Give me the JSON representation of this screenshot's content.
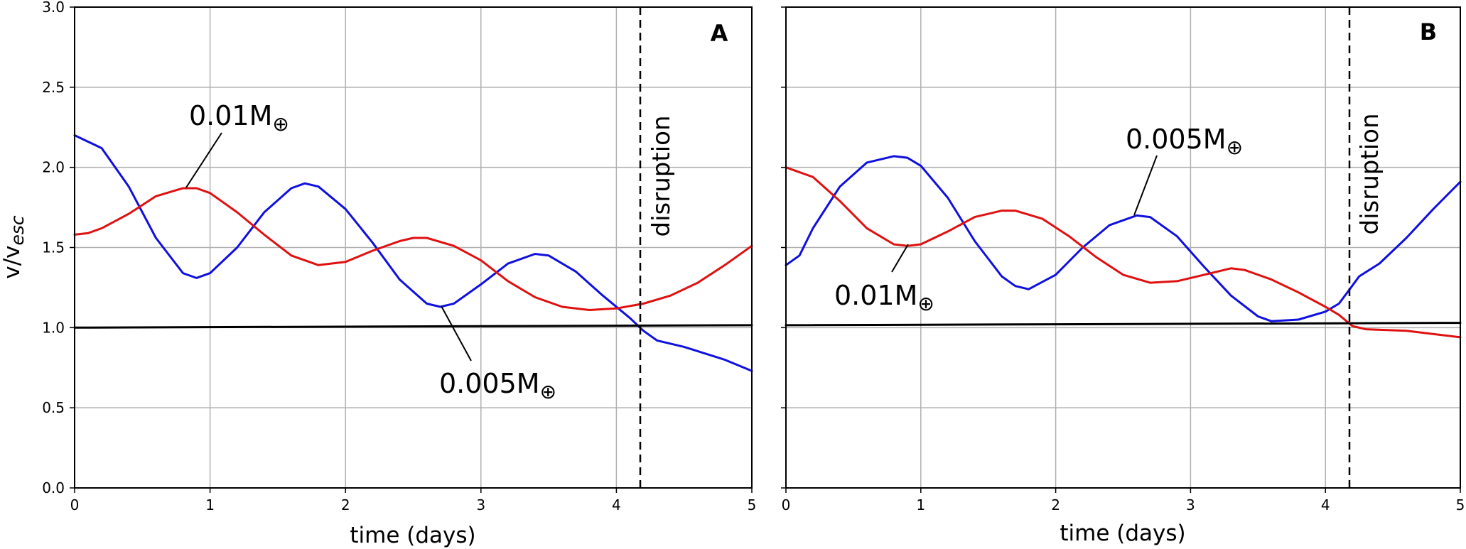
{
  "chart_data": [
    {
      "type": "line",
      "panel_label": "A",
      "xlabel": "time (days)",
      "ylabel": "v/v",
      "ylabel_subscript": "esc",
      "xlim": [
        0,
        5
      ],
      "ylim": [
        0,
        3.0
      ],
      "x_ticks": [
        "0",
        "1",
        "2",
        "3",
        "4",
        "5"
      ],
      "y_ticks": [
        "0.0",
        "0.5",
        "1.0",
        "1.5",
        "2.0",
        "2.5",
        "3.0"
      ],
      "grid": true,
      "series": [
        {
          "color": "#1010e0",
          "points": [
            [
              0,
              2.2
            ],
            [
              0.2,
              2.12
            ],
            [
              0.4,
              1.88
            ],
            [
              0.6,
              1.56
            ],
            [
              0.8,
              1.34
            ],
            [
              0.9,
              1.31
            ],
            [
              1.0,
              1.34
            ],
            [
              1.2,
              1.5
            ],
            [
              1.4,
              1.72
            ],
            [
              1.6,
              1.87
            ],
            [
              1.7,
              1.9
            ],
            [
              1.8,
              1.88
            ],
            [
              2.0,
              1.74
            ],
            [
              2.2,
              1.53
            ],
            [
              2.4,
              1.3
            ],
            [
              2.6,
              1.15
            ],
            [
              2.7,
              1.13
            ],
            [
              2.8,
              1.15
            ],
            [
              3.0,
              1.27
            ],
            [
              3.2,
              1.4
            ],
            [
              3.4,
              1.46
            ],
            [
              3.5,
              1.45
            ],
            [
              3.7,
              1.35
            ],
            [
              3.9,
              1.2
            ],
            [
              4.1,
              1.06
            ],
            [
              4.2,
              0.98
            ],
            [
              4.3,
              0.92
            ],
            [
              4.5,
              0.88
            ],
            [
              4.8,
              0.8
            ],
            [
              5.0,
              0.73
            ]
          ]
        },
        {
          "color": "#e01010",
          "points": [
            [
              0,
              1.58
            ],
            [
              0.1,
              1.59
            ],
            [
              0.2,
              1.62
            ],
            [
              0.4,
              1.71
            ],
            [
              0.6,
              1.82
            ],
            [
              0.8,
              1.87
            ],
            [
              0.9,
              1.87
            ],
            [
              1.0,
              1.84
            ],
            [
              1.2,
              1.72
            ],
            [
              1.4,
              1.58
            ],
            [
              1.6,
              1.45
            ],
            [
              1.8,
              1.39
            ],
            [
              2.0,
              1.41
            ],
            [
              2.2,
              1.48
            ],
            [
              2.4,
              1.54
            ],
            [
              2.5,
              1.56
            ],
            [
              2.6,
              1.56
            ],
            [
              2.8,
              1.51
            ],
            [
              3.0,
              1.42
            ],
            [
              3.2,
              1.29
            ],
            [
              3.4,
              1.19
            ],
            [
              3.6,
              1.13
            ],
            [
              3.8,
              1.11
            ],
            [
              4.0,
              1.12
            ],
            [
              4.2,
              1.15
            ],
            [
              4.4,
              1.2
            ],
            [
              4.6,
              1.28
            ],
            [
              4.8,
              1.39
            ],
            [
              5.0,
              1.51
            ]
          ]
        },
        {
          "color": "#000000",
          "points": [
            [
              0,
              1.0
            ],
            [
              5.0,
              1.015
            ]
          ]
        }
      ],
      "annotations": [
        {
          "main": "0.01M",
          "sub": "⊕",
          "arrow_to": [
            0.85,
            1.87
          ]
        },
        {
          "main": "0.005M",
          "sub": "⊕",
          "arrow_to": [
            2.75,
            1.13
          ]
        }
      ],
      "vline": {
        "x": 4.18,
        "label": "disruption",
        "style": "dashed"
      }
    },
    {
      "type": "line",
      "panel_label": "B",
      "xlabel": "time (days)",
      "xlim": [
        0,
        5
      ],
      "ylim": [
        0,
        3.0
      ],
      "x_ticks": [
        "0",
        "1",
        "2",
        "3",
        "4",
        "5"
      ],
      "grid": true,
      "series": [
        {
          "color": "#1010e0",
          "points": [
            [
              0,
              1.39
            ],
            [
              0.1,
              1.45
            ],
            [
              0.2,
              1.62
            ],
            [
              0.4,
              1.88
            ],
            [
              0.6,
              2.03
            ],
            [
              0.8,
              2.07
            ],
            [
              0.9,
              2.06
            ],
            [
              1.0,
              2.01
            ],
            [
              1.2,
              1.81
            ],
            [
              1.4,
              1.54
            ],
            [
              1.6,
              1.32
            ],
            [
              1.7,
              1.26
            ],
            [
              1.8,
              1.24
            ],
            [
              2.0,
              1.33
            ],
            [
              2.2,
              1.5
            ],
            [
              2.4,
              1.64
            ],
            [
              2.6,
              1.7
            ],
            [
              2.7,
              1.69
            ],
            [
              2.9,
              1.57
            ],
            [
              3.1,
              1.38
            ],
            [
              3.3,
              1.2
            ],
            [
              3.5,
              1.07
            ],
            [
              3.6,
              1.04
            ],
            [
              3.8,
              1.05
            ],
            [
              4.0,
              1.1
            ],
            [
              4.1,
              1.15
            ],
            [
              4.18,
              1.24
            ],
            [
              4.25,
              1.32
            ],
            [
              4.4,
              1.4
            ],
            [
              4.6,
              1.56
            ],
            [
              4.8,
              1.74
            ],
            [
              5.0,
              1.91
            ]
          ]
        },
        {
          "color": "#e01010",
          "points": [
            [
              0,
              2.0
            ],
            [
              0.2,
              1.94
            ],
            [
              0.4,
              1.79
            ],
            [
              0.6,
              1.62
            ],
            [
              0.8,
              1.52
            ],
            [
              0.9,
              1.51
            ],
            [
              1.0,
              1.52
            ],
            [
              1.2,
              1.6
            ],
            [
              1.4,
              1.69
            ],
            [
              1.6,
              1.73
            ],
            [
              1.7,
              1.73
            ],
            [
              1.9,
              1.68
            ],
            [
              2.1,
              1.57
            ],
            [
              2.3,
              1.44
            ],
            [
              2.5,
              1.33
            ],
            [
              2.7,
              1.28
            ],
            [
              2.9,
              1.29
            ],
            [
              3.1,
              1.33
            ],
            [
              3.3,
              1.37
            ],
            [
              3.4,
              1.36
            ],
            [
              3.6,
              1.3
            ],
            [
              3.8,
              1.22
            ],
            [
              4.0,
              1.13
            ],
            [
              4.1,
              1.08
            ],
            [
              4.2,
              1.01
            ],
            [
              4.3,
              0.99
            ],
            [
              4.6,
              0.98
            ],
            [
              5.0,
              0.94
            ]
          ]
        },
        {
          "color": "#000000",
          "points": [
            [
              0,
              1.015
            ],
            [
              5.0,
              1.03
            ]
          ]
        }
      ],
      "annotations": [
        {
          "main": "0.005M",
          "sub": "⊕",
          "arrow_to": [
            2.55,
            1.7
          ]
        },
        {
          "main": "0.01M",
          "sub": "⊕",
          "arrow_to": [
            0.9,
            1.51
          ]
        }
      ],
      "vline": {
        "x": 4.18,
        "label": "disruption",
        "style": "dashed"
      }
    }
  ]
}
